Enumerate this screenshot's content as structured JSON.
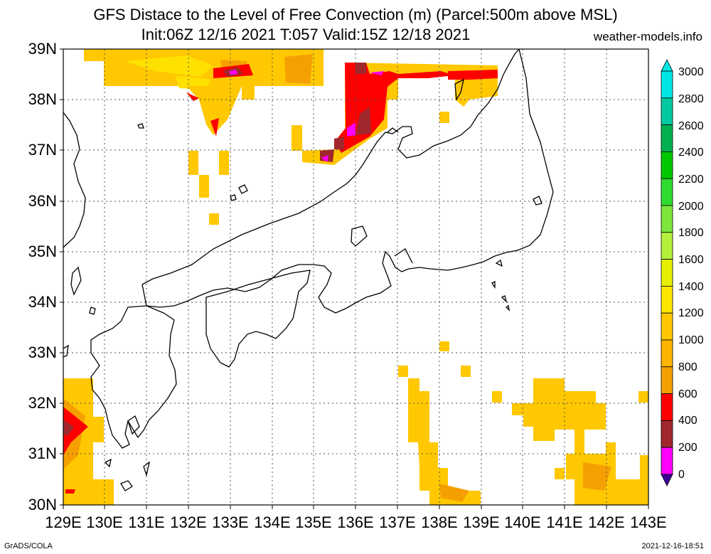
{
  "header": {
    "title_line1": "GFS Distace to the Level of Free Convection (m) (Parcel:500m above MSL)",
    "title_line2": "Init:06Z 12/16 2021 T:057 Valid:15Z 12/18 2021",
    "site": "weather-models.info"
  },
  "axes": {
    "lat_labels": [
      "39N",
      "38N",
      "37N",
      "36N",
      "35N",
      "34N",
      "33N",
      "32N",
      "31N",
      "30N"
    ],
    "lon_labels": [
      "129E",
      "130E",
      "131E",
      "132E",
      "133E",
      "134E",
      "135E",
      "136E",
      "137E",
      "138E",
      "139E",
      "140E",
      "141E",
      "142E",
      "143E"
    ]
  },
  "colorbar": {
    "labels": [
      "3000",
      "2800",
      "2600",
      "2400",
      "2200",
      "2000",
      "1800",
      "1600",
      "1400",
      "1200",
      "1000",
      "800",
      "600",
      "400",
      "200",
      "0"
    ],
    "colors": [
      "#00e6e6",
      "#00c8a0",
      "#00b050",
      "#00c800",
      "#30dc30",
      "#7ce63c",
      "#b4f03c",
      "#e6f000",
      "#ffe600",
      "#ffc800",
      "#ffb400",
      "#f5a000",
      "#ff0000",
      "#a0282d",
      "#ff00ff",
      "#3c0096"
    ]
  },
  "footer": {
    "left": "GrADS/COLA",
    "right": "2021-12-16-18:51"
  }
}
